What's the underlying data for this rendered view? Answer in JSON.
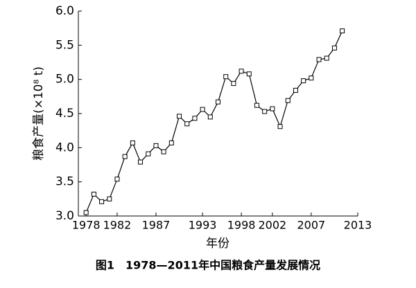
{
  "chart_data": {
    "type": "line",
    "title": "图1　1978—2011年中国粮食产量发展情况",
    "x_label": "年份",
    "y_label": "粮食产量(×10⁸ t)",
    "x": [
      1978,
      1979,
      1980,
      1981,
      1982,
      1983,
      1984,
      1985,
      1986,
      1987,
      1988,
      1989,
      1990,
      1991,
      1992,
      1993,
      1994,
      1995,
      1996,
      1997,
      1998,
      1999,
      2000,
      2001,
      2002,
      2003,
      2004,
      2005,
      2006,
      2007,
      2008,
      2009,
      2010,
      2011
    ],
    "series": [
      {
        "color": "#000000",
        "values": [
          3.05,
          3.32,
          3.21,
          3.25,
          3.54,
          3.87,
          4.07,
          3.79,
          3.91,
          4.03,
          3.94,
          4.07,
          4.46,
          4.35,
          4.43,
          4.56,
          4.45,
          4.67,
          5.04,
          4.94,
          5.12,
          5.08,
          4.62,
          4.53,
          4.57,
          4.31,
          4.69,
          4.84,
          4.98,
          5.02,
          5.29,
          5.31,
          5.46,
          5.71
        ]
      }
    ],
    "xlim": [
      1977,
      2013
    ],
    "xticks": [
      1978,
      1982,
      1987,
      1993,
      1998,
      2002,
      2007,
      2013
    ],
    "ylim": [
      3,
      6
    ],
    "yticks": [
      {
        "value": 3,
        "label": "3.0"
      },
      3.5,
      {
        "value": 4,
        "label": "4.0"
      },
      4.5,
      {
        "value": 5,
        "label": "5.0"
      },
      5.5,
      {
        "value": 6,
        "label": "6.0"
      }
    ],
    "grid": false
  }
}
